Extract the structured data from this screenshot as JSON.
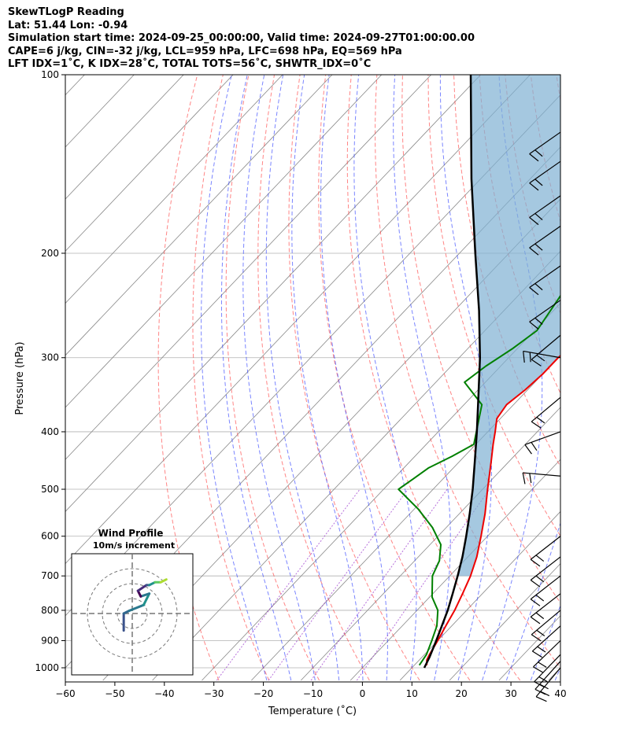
{
  "header": {
    "title": "SkewTLogP Reading",
    "location": "Lat: 51.44   Lon: -0.94",
    "times": "Simulation start time: 2024-09-25_00:00:00, Valid time: 2024-09-27T01:00:00.00",
    "indices1": "CAPE=6 j/kg, CIN=-32 j/kg, LCL=959 hPa, LFC=698 hPa, EQ=569 hPa",
    "indices2": "LFT IDX=1˚C, K IDX=28˚C, TOTAL TOTS=56˚C, SHWTR_IDX=0˚C"
  },
  "chart_data": {
    "type": "skewt-logp",
    "xlabel": "Temperature (˚C)",
    "ylabel": "Pressure (hPa)",
    "xlim": [
      -60,
      40
    ],
    "ylim": [
      1050,
      100
    ],
    "xticks": [
      -60,
      -50,
      -40,
      -30,
      -20,
      -10,
      0,
      10,
      20,
      30,
      40
    ],
    "yticks": [
      100,
      200,
      300,
      400,
      500,
      600,
      700,
      800,
      900,
      1000
    ],
    "grid": true,
    "colors": {
      "temperature": "#ee0000",
      "dewpoint": "#008000",
      "parcel": "#000000",
      "cape_fill": "#7fb0d3",
      "dry_adiabats": "#ff4444",
      "moist_adiabats": "#3344ff",
      "mixing_ratio": "#9933cc",
      "isotherms": "#888888"
    },
    "temperature": [
      {
        "p": 990,
        "t": 12.5
      },
      {
        "p": 970,
        "t": 11.5
      },
      {
        "p": 950,
        "t": 11.0
      },
      {
        "p": 900,
        "t": 10.0
      },
      {
        "p": 850,
        "t": 8.8
      },
      {
        "p": 800,
        "t": 7.6
      },
      {
        "p": 750,
        "t": 6.0
      },
      {
        "p": 700,
        "t": 4.2
      },
      {
        "p": 650,
        "t": 1.8
      },
      {
        "p": 600,
        "t": -1.3
      },
      {
        "p": 550,
        "t": -4.8
      },
      {
        "p": 500,
        "t": -9.0
      },
      {
        "p": 450,
        "t": -13.5
      },
      {
        "p": 420,
        "t": -16.5
      },
      {
        "p": 400,
        "t": -18.5
      },
      {
        "p": 380,
        "t": -20.7
      },
      {
        "p": 360,
        "t": -21.4
      },
      {
        "p": 340,
        "t": -20.5
      },
      {
        "p": 320,
        "t": -20.0
      },
      {
        "p": 300,
        "t": -20.0
      },
      {
        "p": 280,
        "t": -19.2
      },
      {
        "p": 260,
        "t": -18.2
      },
      {
        "p": 240,
        "t": -17.4
      },
      {
        "p": 220,
        "t": -17.4
      },
      {
        "p": 200,
        "t": -17.5
      },
      {
        "p": 190,
        "t": -17.5
      },
      {
        "p": 180,
        "t": -18.2
      },
      {
        "p": 160,
        "t": -19.5
      },
      {
        "p": 150,
        "t": -20.2
      },
      {
        "p": 140,
        "t": -21.0
      },
      {
        "p": 130,
        "t": -21.5
      },
      {
        "p": 120,
        "t": -22.4
      },
      {
        "p": 110,
        "t": -23.5
      },
      {
        "p": 100,
        "t": -24.5
      }
    ],
    "dewpoint": [
      {
        "p": 990,
        "t": 11.0
      },
      {
        "p": 950,
        "t": 10.4
      },
      {
        "p": 900,
        "t": 8.8
      },
      {
        "p": 850,
        "t": 7.0
      },
      {
        "p": 800,
        "t": 4.2
      },
      {
        "p": 760,
        "t": 0.5
      },
      {
        "p": 700,
        "t": -3.5
      },
      {
        "p": 660,
        "t": -5.0
      },
      {
        "p": 620,
        "t": -7.8
      },
      {
        "p": 580,
        "t": -12.8
      },
      {
        "p": 540,
        "t": -19.2
      },
      {
        "p": 500,
        "t": -27.0
      },
      {
        "p": 480,
        "t": -26.0
      },
      {
        "p": 460,
        "t": -25.0
      },
      {
        "p": 440,
        "t": -22.5
      },
      {
        "p": 420,
        "t": -20.4
      },
      {
        "p": 400,
        "t": -22.3
      },
      {
        "p": 380,
        "t": -24.3
      },
      {
        "p": 360,
        "t": -26.4
      },
      {
        "p": 330,
        "t": -34.2
      },
      {
        "p": 310,
        "t": -33.0
      },
      {
        "p": 290,
        "t": -31.0
      },
      {
        "p": 270,
        "t": -29.5
      },
      {
        "p": 250,
        "t": -30.6
      },
      {
        "p": 220,
        "t": -32.4
      },
      {
        "p": 200,
        "t": -36.6
      },
      {
        "p": 180,
        "t": -36.3
      },
      {
        "p": 150,
        "t": -36.7
      },
      {
        "p": 130,
        "t": -37.0
      },
      {
        "p": 100,
        "t": -39.5
      }
    ],
    "parcel": [
      {
        "p": 1000,
        "t": 12.5
      },
      {
        "p": 959,
        "t": 11.5
      },
      {
        "p": 900,
        "t": 9.7
      },
      {
        "p": 850,
        "t": 8.0
      },
      {
        "p": 800,
        "t": 6.2
      },
      {
        "p": 750,
        "t": 4.0
      },
      {
        "p": 700,
        "t": 1.6
      },
      {
        "p": 650,
        "t": -1.1
      },
      {
        "p": 600,
        "t": -4.3
      },
      {
        "p": 550,
        "t": -7.9
      },
      {
        "p": 500,
        "t": -12.0
      },
      {
        "p": 450,
        "t": -16.8
      },
      {
        "p": 400,
        "t": -22.2
      },
      {
        "p": 350,
        "t": -28.5
      },
      {
        "p": 300,
        "t": -35.8
      },
      {
        "p": 250,
        "t": -45.0
      },
      {
        "p": 200,
        "t": -56.8
      },
      {
        "p": 150,
        "t": -71.8
      },
      {
        "p": 100,
        "t": -92.0
      }
    ],
    "wind_barbs": [
      {
        "p": 1000,
        "dir": 220,
        "spd": 10
      },
      {
        "p": 975,
        "dir": 222,
        "spd": 10
      },
      {
        "p": 950,
        "dir": 224,
        "spd": 10
      },
      {
        "p": 900,
        "dir": 226,
        "spd": 10
      },
      {
        "p": 850,
        "dir": 228,
        "spd": 10
      },
      {
        "p": 800,
        "dir": 230,
        "spd": 10
      },
      {
        "p": 750,
        "dir": 232,
        "spd": 10
      },
      {
        "p": 700,
        "dir": 232,
        "spd": 10
      },
      {
        "p": 650,
        "dir": 232,
        "spd": 10
      },
      {
        "p": 600,
        "dir": 232,
        "spd": 10
      },
      {
        "p": 475,
        "dir": 275,
        "spd": 10
      },
      {
        "p": 400,
        "dir": 250,
        "spd": 10
      },
      {
        "p": 350,
        "dir": 230,
        "spd": 10
      },
      {
        "p": 300,
        "dir": 280,
        "spd": 10
      },
      {
        "p": 275,
        "dir": 230,
        "spd": 10
      },
      {
        "p": 240,
        "dir": 235,
        "spd": 10
      },
      {
        "p": 210,
        "dir": 235,
        "spd": 10
      },
      {
        "p": 180,
        "dir": 235,
        "spd": 10
      },
      {
        "p": 160,
        "dir": 235,
        "spd": 10
      },
      {
        "p": 140,
        "dir": 235,
        "spd": 10
      },
      {
        "p": 125,
        "dir": 235,
        "spd": 10
      }
    ],
    "hodograph": {
      "title": "Wind Profile",
      "subtitle": "10m/s increment",
      "rings_ms": [
        10,
        20,
        30
      ],
      "path_uv": [
        [
          -3,
          -6
        ],
        [
          -3,
          0
        ],
        [
          -1,
          1
        ],
        [
          4,
          3
        ],
        [
          6,
          7
        ],
        [
          3,
          6
        ],
        [
          2,
          8
        ],
        [
          5,
          10
        ],
        [
          6,
          10
        ],
        [
          8,
          11
        ],
        [
          10,
          11
        ],
        [
          12,
          12
        ]
      ]
    }
  }
}
